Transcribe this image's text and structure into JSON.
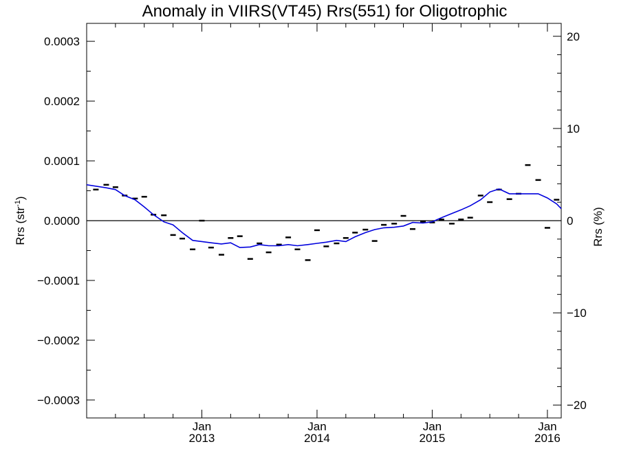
{
  "chart_data": {
    "type": "line",
    "title": "Anomaly in VIIRS(VT45) Rrs(551) for Oligotrophic",
    "ylabel_left": "Rrs (str",
    "ylabel_left_sup": "-1",
    "ylabel_left_close": ")",
    "ylabel_right": "Rrs (%)",
    "xlim": [
      2012.0,
      2016.12
    ],
    "ylim": [
      -0.00033,
      0.00033
    ],
    "y2lim": [
      -21.4,
      21.4
    ],
    "x_major_ticks": [
      {
        "x": 2013.0,
        "line1": "Jan",
        "line2": "2013"
      },
      {
        "x": 2014.0,
        "line1": "Jan",
        "line2": "2014"
      },
      {
        "x": 2015.0,
        "line1": "Jan",
        "line2": "2015"
      },
      {
        "x": 2016.0,
        "line1": "Jan",
        "line2": "2016"
      }
    ],
    "y_ticks": [
      {
        "v": 0.0003,
        "label": "0.0003"
      },
      {
        "v": 0.0002,
        "label": "0.0002"
      },
      {
        "v": 0.0001,
        "label": "0.0001"
      },
      {
        "v": 0.0,
        "label": "0.0000"
      },
      {
        "v": -0.0001,
        "label": "−0.0001"
      },
      {
        "v": -0.0002,
        "label": "−0.0002"
      },
      {
        "v": -0.0003,
        "label": "−0.0003"
      }
    ],
    "y2_ticks": [
      {
        "v": 20,
        "label": "20"
      },
      {
        "v": 10,
        "label": "10"
      },
      {
        "v": 0,
        "label": "0"
      },
      {
        "v": -10,
        "label": "−10"
      },
      {
        "v": -20,
        "label": "−20"
      }
    ],
    "grid": false,
    "zero_line": true,
    "series": [
      {
        "kind": "markers",
        "color": "#000000",
        "x": [
          2012.08,
          2012.17,
          2012.25,
          2012.33,
          2012.42,
          2012.5,
          2012.58,
          2012.67,
          2012.75,
          2012.83,
          2012.92,
          2013.0,
          2013.08,
          2013.17,
          2013.25,
          2013.33,
          2013.42,
          2013.5,
          2013.58,
          2013.67,
          2013.75,
          2013.83,
          2013.92,
          2014.0,
          2014.08,
          2014.17,
          2014.25,
          2014.33,
          2014.42,
          2014.5,
          2014.58,
          2014.67,
          2014.75,
          2014.83,
          2014.92,
          2015.0,
          2015.08,
          2015.17,
          2015.25,
          2015.33,
          2015.42,
          2015.5,
          2015.58,
          2015.67,
          2015.75,
          2015.83,
          2015.92,
          2016.0,
          2016.08
        ],
        "y": [
          5.2e-05,
          6e-05,
          5.6e-05,
          4.2e-05,
          3.7e-05,
          4e-05,
          1e-05,
          9e-06,
          -2.4e-05,
          -3e-05,
          -4.8e-05,
          0.0,
          -4.5e-05,
          -5.7e-05,
          -2.9e-05,
          -2.6e-05,
          -6.4e-05,
          -3.8e-05,
          -5.3e-05,
          -4e-05,
          -2.8e-05,
          -4.8e-05,
          -6.6e-05,
          -1.6e-05,
          -4.3e-05,
          -3.8e-05,
          -2.9e-05,
          -2e-05,
          -1.5e-05,
          -3.4e-05,
          -7e-06,
          -5e-06,
          8e-06,
          -1.4e-05,
          -2e-06,
          -3e-06,
          2e-06,
          -5e-06,
          2e-06,
          5e-06,
          4.2e-05,
          3.1e-05,
          5.2e-05,
          3.6e-05,
          4.5e-05,
          9.3e-05,
          6.8e-05,
          -1.2e-05,
          3.5e-05
        ]
      },
      {
        "kind": "line",
        "color": "#0000dd",
        "x": [
          2012.0,
          2012.17,
          2012.25,
          2012.33,
          2012.42,
          2012.5,
          2012.58,
          2012.67,
          2012.75,
          2012.83,
          2012.92,
          2013.0,
          2013.08,
          2013.17,
          2013.25,
          2013.33,
          2013.42,
          2013.5,
          2013.58,
          2013.67,
          2013.75,
          2013.83,
          2013.92,
          2014.0,
          2014.08,
          2014.17,
          2014.25,
          2014.33,
          2014.42,
          2014.5,
          2014.58,
          2014.67,
          2014.75,
          2014.83,
          2014.92,
          2015.0,
          2015.08,
          2015.17,
          2015.25,
          2015.33,
          2015.42,
          2015.5,
          2015.58,
          2015.67,
          2015.75,
          2015.83,
          2015.92,
          2016.0,
          2016.08,
          2016.12
        ],
        "y": [
          6e-05,
          5.5e-05,
          5.2e-05,
          4.2e-05,
          3.5e-05,
          2.3e-05,
          1e-05,
          -2e-06,
          -7e-06,
          -2e-05,
          -3.3e-05,
          -3.5e-05,
          -3.7e-05,
          -3.9e-05,
          -3.7e-05,
          -4.5e-05,
          -4.4e-05,
          -4e-05,
          -4.2e-05,
          -4.2e-05,
          -4e-05,
          -4.2e-05,
          -4e-05,
          -3.8e-05,
          -3.6e-05,
          -3.3e-05,
          -3.5e-05,
          -2.7e-05,
          -2e-05,
          -1.5e-05,
          -1.2e-05,
          -1.1e-05,
          -9e-06,
          -3e-06,
          -4e-06,
          -2e-06,
          5e-06,
          1.2e-05,
          1.8e-05,
          2.5e-05,
          3.5e-05,
          4.8e-05,
          5.3e-05,
          4.5e-05,
          4.5e-05,
          4.5e-05,
          4.5e-05,
          3.8e-05,
          2.8e-05,
          2e-05
        ]
      }
    ]
  }
}
